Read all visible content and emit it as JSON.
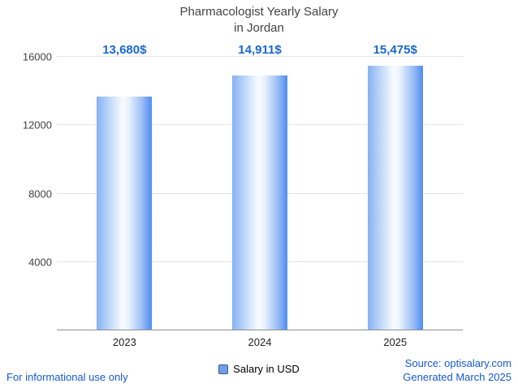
{
  "title": {
    "line1": "Pharmacologist Yearly Salary",
    "line2": "in Jordan"
  },
  "chart_data": {
    "type": "bar",
    "title": "Pharmacologist Yearly Salary in Jordan",
    "categories": [
      "2023",
      "2024",
      "2025"
    ],
    "values": [
      13680,
      14911,
      15475
    ],
    "value_labels": [
      "13,680$",
      "14,911$",
      "15,475$"
    ],
    "series_name": "Salary in USD",
    "xlabel": "",
    "ylabel": "",
    "ylim": [
      0,
      16000
    ],
    "yticks": [
      4000,
      8000,
      12000,
      16000
    ],
    "grid": "horizontal",
    "legend": [
      "Salary in USD"
    ],
    "legend_position": "bottom",
    "bar_color": "#4d8df0",
    "value_label_color": "#1967d2"
  },
  "footer": {
    "disclaimer": "For informational use only",
    "source": "Source: optisalary.com",
    "generated": "Generated March 2025"
  }
}
